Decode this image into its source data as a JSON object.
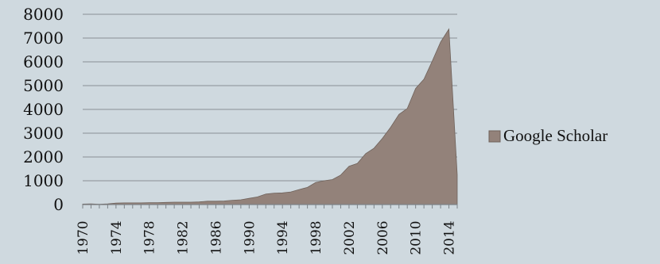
{
  "chart_data": {
    "type": "area",
    "title": "",
    "xlabel": "",
    "ylabel": "",
    "ylim": [
      0,
      8000
    ],
    "yticks": [
      "0",
      "1000",
      "2000",
      "3000",
      "4000",
      "5000",
      "6000",
      "7000",
      "8000"
    ],
    "xtick_labels": [
      "1970",
      "1974",
      "1978",
      "1982",
      "1986",
      "1990",
      "1994",
      "1998",
      "2002",
      "2006",
      "2010",
      "2014"
    ],
    "grid": true,
    "legend_position": "right",
    "series": [
      {
        "name": "Google Scholar",
        "color": "#93827a",
        "x": [
          1970,
          1971,
          1972,
          1973,
          1974,
          1975,
          1976,
          1977,
          1978,
          1979,
          1980,
          1981,
          1982,
          1983,
          1984,
          1985,
          1986,
          1987,
          1988,
          1989,
          1990,
          1991,
          1992,
          1993,
          1994,
          1995,
          1996,
          1997,
          1998,
          1999,
          2000,
          2001,
          2002,
          2003,
          2004,
          2005,
          2006,
          2007,
          2008,
          2009,
          2010,
          2011,
          2012,
          2013,
          2014,
          2015
        ],
        "values": [
          20,
          30,
          10,
          30,
          60,
          70,
          70,
          70,
          80,
          80,
          90,
          100,
          100,
          100,
          110,
          140,
          140,
          150,
          180,
          200,
          260,
          320,
          440,
          480,
          490,
          530,
          630,
          720,
          930,
          1000,
          1050,
          1240,
          1610,
          1730,
          2140,
          2370,
          2780,
          3250,
          3790,
          4040,
          4880,
          5270,
          6030,
          6830,
          7380,
          1250
        ]
      }
    ]
  }
}
